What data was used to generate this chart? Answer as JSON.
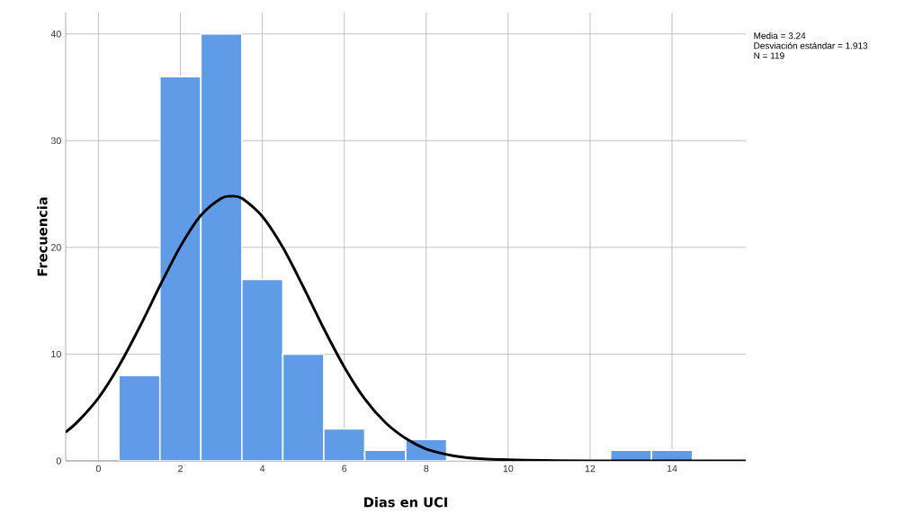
{
  "chart_data": {
    "type": "histogram",
    "xlabel": "Dias en UCI",
    "ylabel": "Frecuencia",
    "annotations": [
      "Media = 3.24",
      "Desviación estándar = 1.913",
      "N = 119"
    ],
    "xlim": [
      -0.8,
      15.8
    ],
    "ylim": [
      0,
      42
    ],
    "xticks": [
      0,
      2,
      4,
      6,
      8,
      10,
      12,
      14
    ],
    "yticks": [
      0,
      10,
      20,
      30,
      40
    ],
    "grid": true,
    "series": [
      {
        "color": "#5f9be6",
        "bins": [
          0.5,
          1.5,
          2.5,
          3.5,
          4.5,
          5.5,
          6.5,
          7.5,
          8.5,
          9.5,
          10.5,
          11.5,
          12.5,
          13.5,
          14.5
        ],
        "values": [
          8,
          36,
          40,
          17,
          10,
          3,
          1,
          2,
          0,
          0,
          0,
          0,
          1,
          1
        ]
      },
      {
        "type": "line",
        "color": "#000000",
        "x": [
          -0.8,
          -0.5,
          0,
          0.5,
          1,
          1.5,
          2,
          2.5,
          3,
          3.24,
          3.5,
          4,
          4.5,
          5,
          5.5,
          6,
          6.5,
          7,
          7.5,
          8,
          8.5,
          9,
          10,
          12,
          15.8
        ],
        "values": [
          2.7,
          3.7,
          5.9,
          8.9,
          12.5,
          16.4,
          20.1,
          23.0,
          24.6,
          24.8,
          24.6,
          22.9,
          20.0,
          16.3,
          12.4,
          8.8,
          5.8,
          3.6,
          2.1,
          1.1,
          0.6,
          0.3,
          0.1,
          0,
          0
        ]
      }
    ]
  }
}
